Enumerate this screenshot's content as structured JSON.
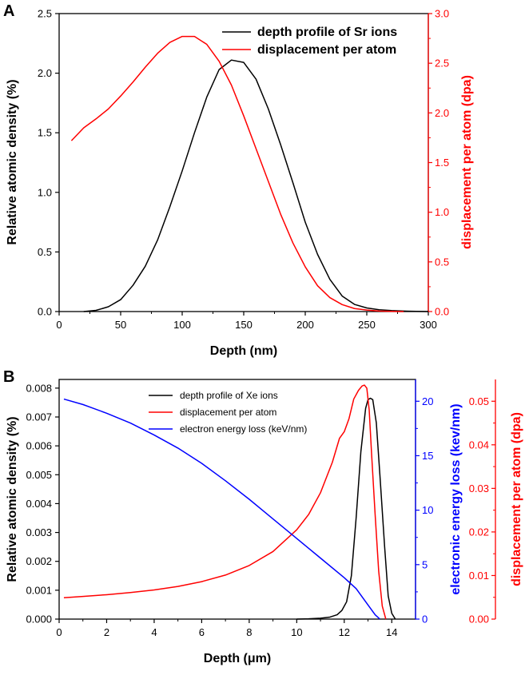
{
  "colors": {
    "black": "#000000",
    "red": "#ff0000",
    "blue": "#0000ff"
  },
  "chart_data": [
    {
      "panel_label": "A",
      "type": "line",
      "xlabel": "Depth (nm)",
      "ylabel": "Relative atomic density  (%)",
      "y2label": "displacement per atom (dpa)",
      "xlim": [
        0,
        300
      ],
      "ylim": [
        0,
        2.5
      ],
      "y2lim": [
        0,
        3.0
      ],
      "xticks": [
        "0",
        "50",
        "100",
        "150",
        "200",
        "250",
        "300"
      ],
      "xtick_values": [
        0,
        50,
        100,
        150,
        200,
        250,
        300
      ],
      "yticks": [
        "0.0",
        "0.5",
        "1.0",
        "1.5",
        "2.0",
        "2.5"
      ],
      "ytick_values": [
        0,
        0.5,
        1.0,
        1.5,
        2.0,
        2.5
      ],
      "y2ticks": [
        "0.0",
        "0.5",
        "1.0",
        "1.5",
        "2.0",
        "2.5",
        "3.0"
      ],
      "y2tick_values": [
        0,
        0.5,
        1.0,
        1.5,
        2.0,
        2.5,
        3.0
      ],
      "legend_position": "top-right",
      "series": [
        {
          "name": "depth profile of Sr ions",
          "color": "#000000",
          "axis": "left",
          "x": [
            20,
            30,
            40,
            50,
            60,
            70,
            80,
            90,
            100,
            110,
            120,
            130,
            140,
            150,
            160,
            170,
            180,
            190,
            200,
            210,
            220,
            230,
            240,
            250,
            260,
            270,
            280,
            290,
            300
          ],
          "y": [
            0.0,
            0.01,
            0.04,
            0.1,
            0.22,
            0.38,
            0.6,
            0.88,
            1.18,
            1.5,
            1.8,
            2.03,
            2.11,
            2.09,
            1.95,
            1.7,
            1.4,
            1.08,
            0.75,
            0.48,
            0.27,
            0.13,
            0.06,
            0.03,
            0.015,
            0.008,
            0.004,
            0.002,
            0.0
          ]
        },
        {
          "name": "displacement per atom",
          "color": "#ff0000",
          "axis": "right",
          "x": [
            10,
            20,
            30,
            40,
            50,
            60,
            70,
            80,
            90,
            100,
            110,
            120,
            130,
            140,
            150,
            160,
            170,
            180,
            190,
            200,
            210,
            220,
            230,
            240,
            250,
            260,
            270,
            280
          ],
          "y": [
            1.72,
            1.85,
            1.94,
            2.04,
            2.17,
            2.31,
            2.46,
            2.6,
            2.71,
            2.77,
            2.77,
            2.69,
            2.52,
            2.28,
            1.97,
            1.64,
            1.31,
            0.98,
            0.69,
            0.45,
            0.26,
            0.14,
            0.07,
            0.03,
            0.015,
            0.005,
            0.002,
            0.0
          ]
        }
      ]
    },
    {
      "panel_label": "B",
      "type": "line",
      "xlabel": "Depth (μm)",
      "ylabel": "Relative atomic density  (%)",
      "y2label": "electronic energy loss (kev/nm)",
      "y3label": "displacement per atom (dpa)",
      "xlim": [
        0,
        15
      ],
      "ylim": [
        0,
        0.0083
      ],
      "y2lim": [
        0,
        22
      ],
      "y3lim": [
        0,
        0.055
      ],
      "xticks": [
        "0",
        "2",
        "4",
        "6",
        "8",
        "10",
        "12",
        "14"
      ],
      "xtick_values": [
        0,
        2,
        4,
        6,
        8,
        10,
        12,
        14
      ],
      "yticks": [
        "0.000",
        "0.001",
        "0.002",
        "0.003",
        "0.004",
        "0.005",
        "0.006",
        "0.007",
        "0.008"
      ],
      "ytick_values": [
        0,
        0.001,
        0.002,
        0.003,
        0.004,
        0.005,
        0.006,
        0.007,
        0.008
      ],
      "y2ticks": [
        "0",
        "5",
        "10",
        "15",
        "20"
      ],
      "y2tick_values": [
        0,
        5,
        10,
        15,
        20
      ],
      "y3ticks": [
        "0.00",
        "0.01",
        "0.02",
        "0.03",
        "0.04",
        "0.05"
      ],
      "y3tick_values": [
        0,
        0.01,
        0.02,
        0.03,
        0.04,
        0.05
      ],
      "legend_position": "top-center",
      "series": [
        {
          "name": "depth profile of Xe ions",
          "color": "#000000",
          "axis": "left",
          "x": [
            10.0,
            10.5,
            11.0,
            11.4,
            11.7,
            11.9,
            12.1,
            12.3,
            12.5,
            12.7,
            12.9,
            13.0,
            13.1,
            13.2,
            13.35,
            13.5,
            13.7,
            13.85,
            14.0,
            14.15
          ],
          "y": [
            0.0,
            1e-05,
            3e-05,
            7e-05,
            0.00015,
            0.0003,
            0.0006,
            0.0015,
            0.0035,
            0.0058,
            0.0073,
            0.0076,
            0.00765,
            0.0076,
            0.0068,
            0.005,
            0.0025,
            0.0008,
            0.0002,
            0.0
          ]
        },
        {
          "name": "displacement per atom",
          "color": "#ff0000",
          "axis": "right2",
          "x": [
            0.2,
            1,
            2,
            3,
            4,
            5,
            6,
            7,
            8,
            9,
            10,
            10.5,
            11,
            11.5,
            11.8,
            12.0,
            12.2,
            12.4,
            12.6,
            12.75,
            12.85,
            12.95,
            13.05,
            13.15,
            13.3,
            13.45,
            13.6,
            13.75
          ],
          "y": [
            0.0049,
            0.0052,
            0.0056,
            0.0061,
            0.0067,
            0.0075,
            0.0086,
            0.0101,
            0.0123,
            0.0155,
            0.0205,
            0.024,
            0.029,
            0.036,
            0.0415,
            0.043,
            0.046,
            0.0505,
            0.0525,
            0.0535,
            0.0537,
            0.053,
            0.048,
            0.038,
            0.024,
            0.011,
            0.003,
            0.0
          ]
        },
        {
          "name": "electron energy loss (keV/nm)",
          "color": "#0000ff",
          "axis": "right1",
          "x": [
            0.2,
            1,
            2,
            3,
            4,
            5,
            6,
            7,
            8,
            9,
            10,
            11,
            12,
            12.5,
            13,
            13.3,
            13.5
          ],
          "y": [
            20.2,
            19.7,
            18.9,
            18.0,
            16.9,
            15.7,
            14.3,
            12.7,
            11.0,
            9.2,
            7.4,
            5.6,
            3.8,
            2.8,
            1.3,
            0.4,
            0.0
          ]
        }
      ]
    }
  ]
}
